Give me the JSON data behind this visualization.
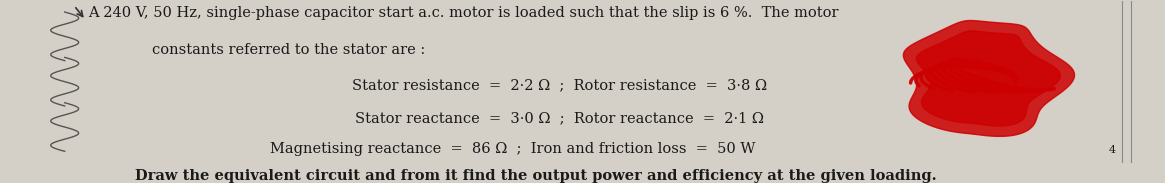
{
  "bg_color": "#d4d0c8",
  "text_color": "#1a1a1a",
  "line1": "A 240 V, 50 Hz, single-phase capacitor start a.c. motor is loaded such that the slip is 6 %.  The motor",
  "line2": "constants referred to the stator are :",
  "line3": "Stator resistance  =  2·2 Ω  ;  Rotor resistance  =  3·8 Ω",
  "line4": "Stator reactance  =  3·0 Ω  ;  Rotor reactance  =  2·1 Ω",
  "line5": "Magnetising reactance  =  86 Ω  ;  Iron and friction loss  =  50 W",
  "line6": "Draw the equivalent circuit and from it find the output power and efficiency at the given loading.",
  "figsize": [
    11.65,
    1.83
  ],
  "dpi": 100,
  "font_size": 10.5,
  "red_color": "#cc0000"
}
